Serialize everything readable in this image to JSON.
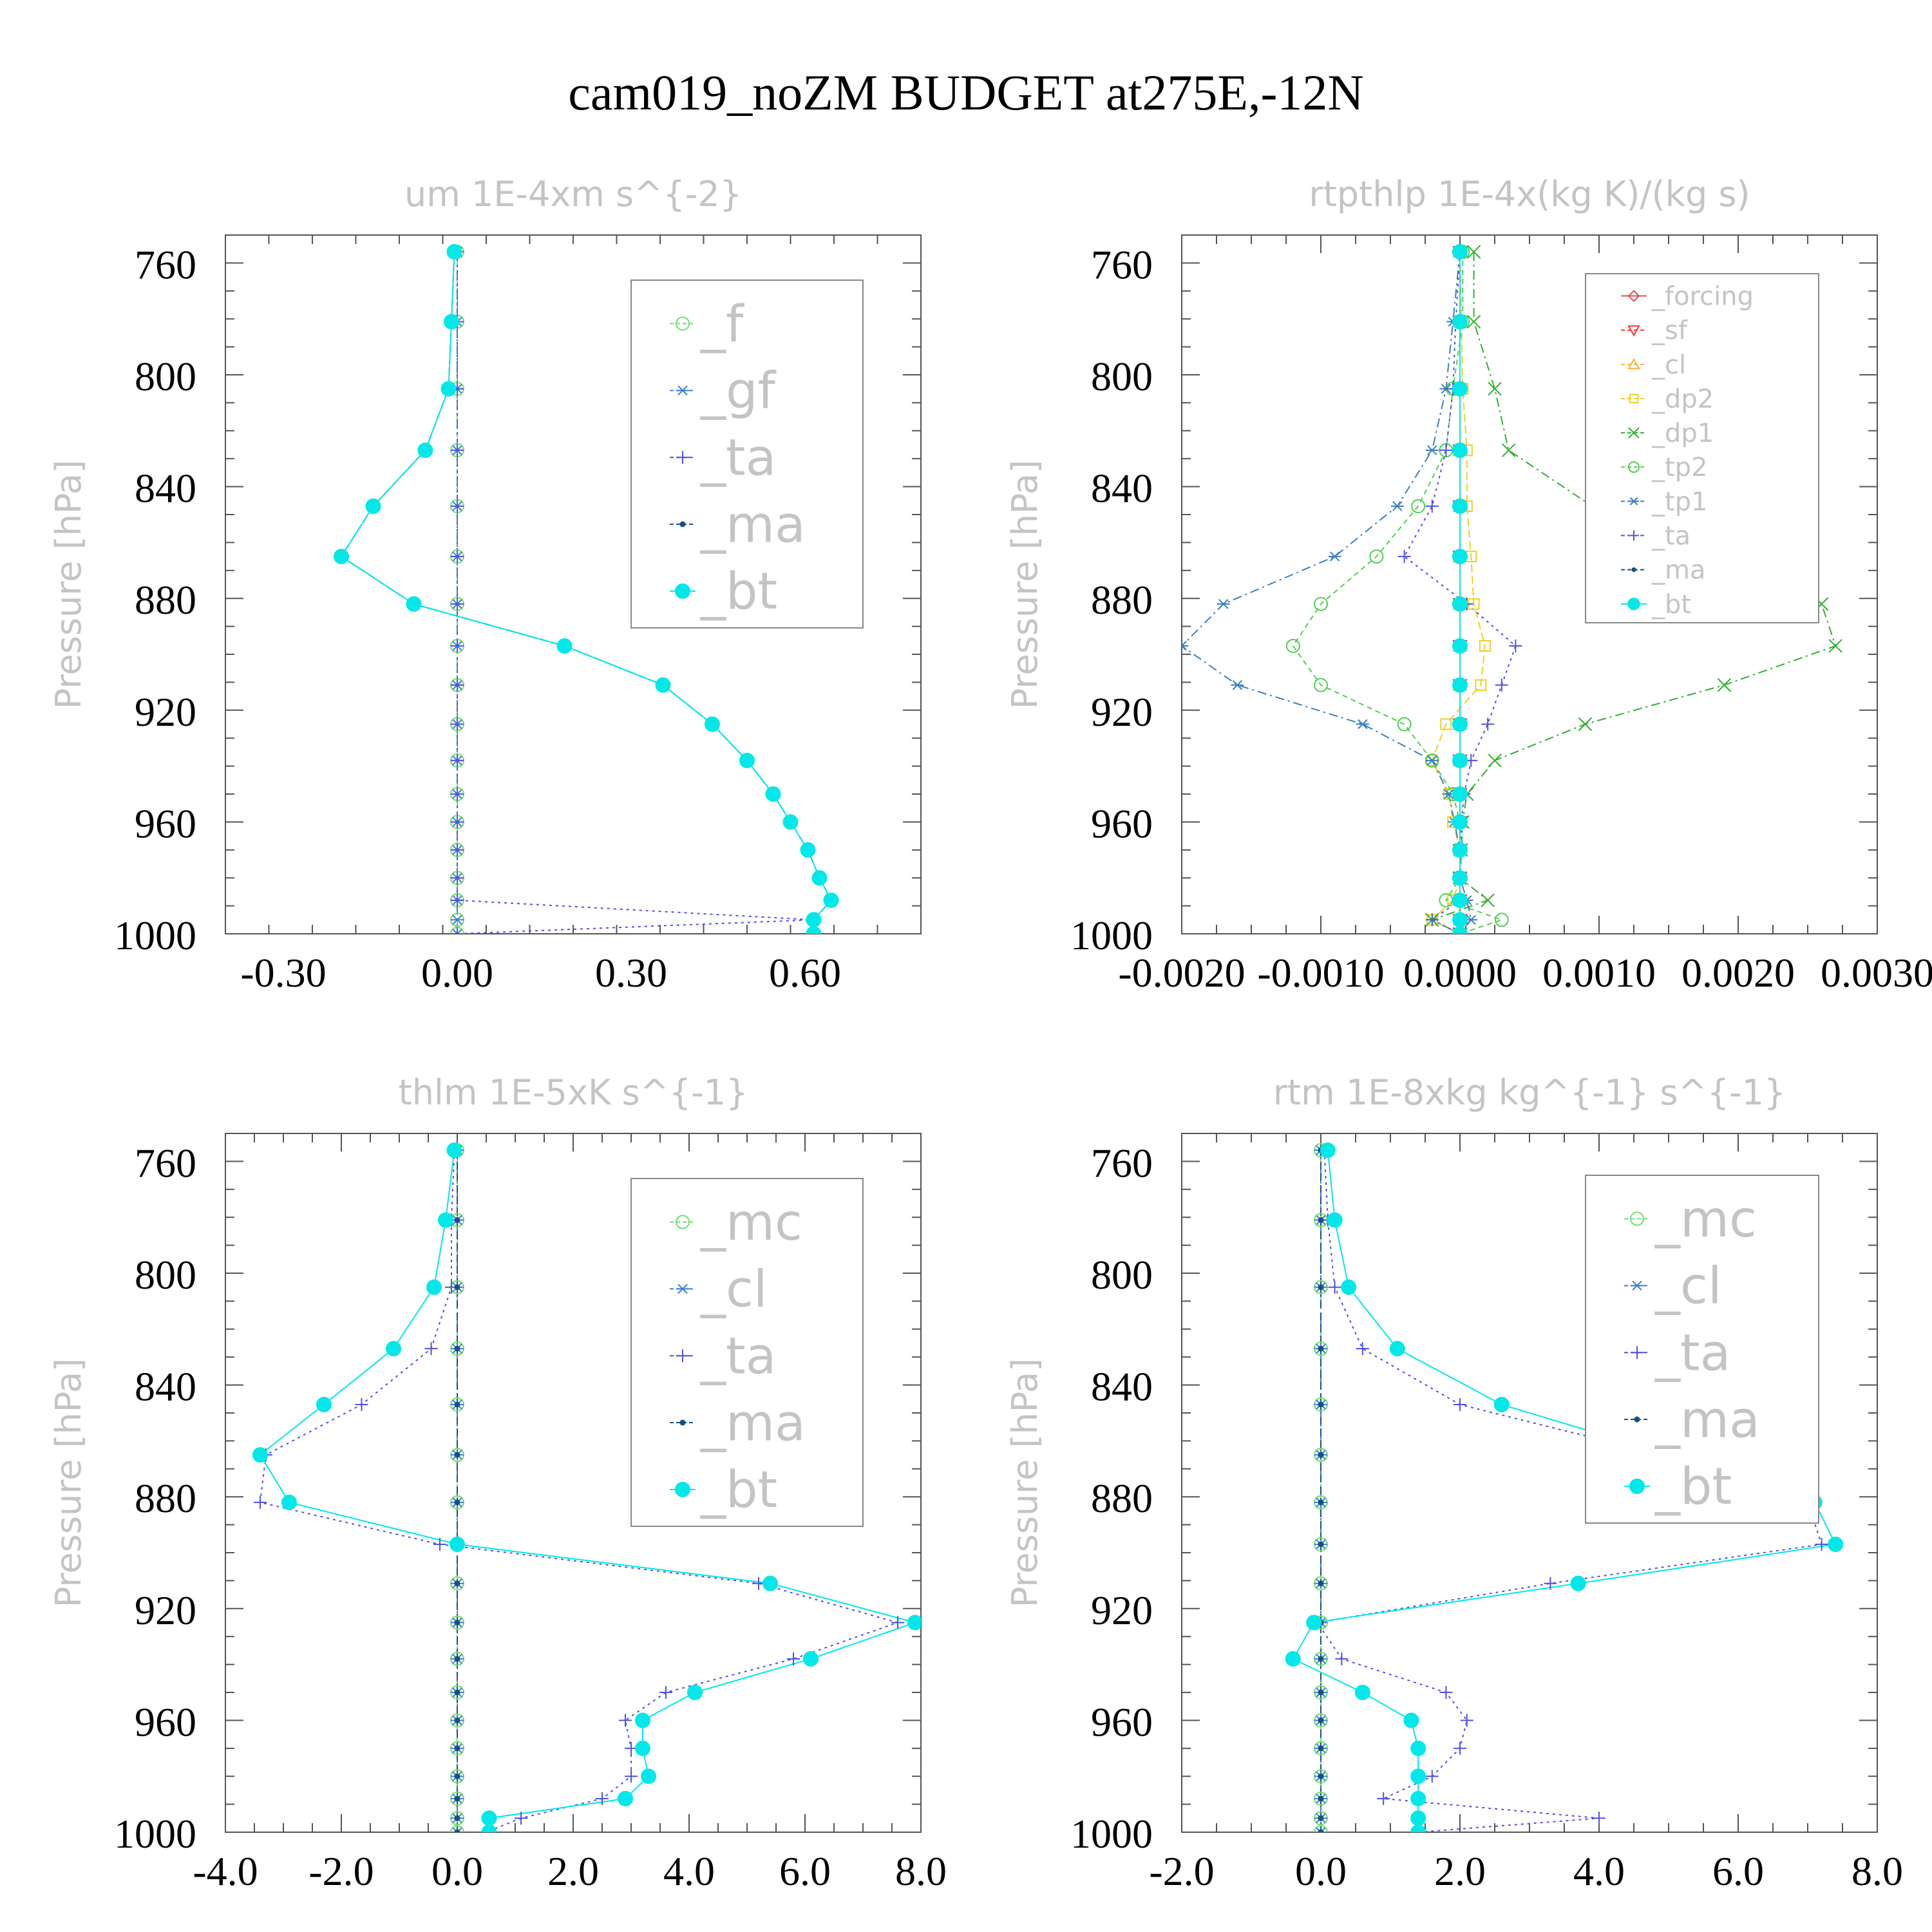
{
  "title": "cam019_noZM  BUDGET at275E,-12N",
  "charts": [
    {
      "type": "line",
      "title": "um   1E-4xm s^{-2}",
      "ylabel": "Pressure [hPa]",
      "xlim": [
        -0.4,
        0.8
      ],
      "xticks": [
        -0.3,
        0.0,
        0.3,
        0.6
      ],
      "xtick_labels": [
        "-0.30",
        "0.00",
        "0.30",
        "0.60"
      ],
      "ylim": [
        1000,
        750
      ],
      "yticks": [
        760,
        800,
        840,
        880,
        920,
        960,
        1000
      ],
      "ytick_labels": [
        "760",
        "800",
        "840",
        "880",
        "920",
        "960",
        "1000"
      ],
      "levels": [
        756,
        781,
        805,
        827,
        847,
        865,
        882,
        897,
        911,
        925,
        938,
        950,
        960,
        970,
        980,
        988,
        995,
        1000
      ],
      "series": [
        {
          "name": "_f",
          "color": "#6ee06e",
          "marker": "circle-open",
          "dash": "8,6",
          "values": [
            0,
            0,
            0,
            0,
            0,
            0,
            0,
            0,
            0,
            0,
            0,
            0,
            0,
            0,
            0,
            0,
            0,
            0
          ]
        },
        {
          "name": "_gf",
          "color": "#3a7fd0",
          "marker": "asterisk",
          "dash": "14,6,3,6",
          "values": [
            0,
            0,
            0,
            0,
            0,
            0,
            0,
            0,
            0,
            0,
            0,
            0,
            0,
            0,
            0,
            0,
            0,
            0
          ]
        },
        {
          "name": "_ta",
          "color": "#5050e6",
          "marker": "plus",
          "dash": "4,6",
          "values": [
            0,
            0,
            0,
            0,
            0,
            0,
            0,
            0,
            0,
            0,
            0,
            0,
            0,
            0,
            0,
            0,
            0.615,
            0.0
          ]
        },
        {
          "name": "_ma",
          "color": "#1a5080",
          "marker": "dot",
          "dash": "12,6",
          "values": [
            -0.005,
            -0.01,
            -0.015,
            -0.055,
            -0.145,
            -0.2,
            -0.075,
            0.185,
            0.355,
            0.44,
            0.5,
            0.545,
            0.575,
            0.605,
            0.625,
            0.645,
            0.615,
            0.615
          ]
        },
        {
          "name": "_bt",
          "color": "#00e8e8",
          "marker": "filled-circle",
          "dash": "",
          "values": [
            -0.005,
            -0.01,
            -0.015,
            -0.055,
            -0.145,
            -0.2,
            -0.075,
            0.185,
            0.355,
            0.44,
            0.5,
            0.545,
            0.575,
            0.605,
            0.625,
            0.645,
            0.615,
            0.615
          ]
        }
      ]
    },
    {
      "type": "line",
      "title": "rtpthlp   1E-4x(kg K)/(kg s)",
      "ylabel": "Pressure [hPa]",
      "xlim": [
        -0.002,
        0.003
      ],
      "xticks": [
        -0.002,
        -0.001,
        0.0,
        0.001,
        0.002,
        0.003
      ],
      "xtick_labels": [
        "-0.0020",
        "-0.0010",
        "0.0000",
        "0.0010",
        "0.0020",
        "0.0030"
      ],
      "ylim": [
        1000,
        750
      ],
      "yticks": [
        760,
        800,
        840,
        880,
        920,
        960,
        1000
      ],
      "ytick_labels": [
        "760",
        "800",
        "840",
        "880",
        "920",
        "960",
        "1000"
      ],
      "levels": [
        756,
        781,
        805,
        827,
        847,
        865,
        882,
        897,
        911,
        925,
        938,
        950,
        960,
        970,
        980,
        988,
        995,
        1000
      ],
      "series": [
        {
          "name": "_forcing",
          "color": "#e05050",
          "marker": "diamond",
          "dash": "",
          "values": [
            0,
            0,
            0,
            0,
            0,
            0,
            0,
            0,
            0,
            0,
            0,
            0,
            0,
            0,
            0,
            0,
            0,
            0
          ]
        },
        {
          "name": "_sf",
          "color": "#ff3030",
          "marker": "triangle-down",
          "dash": "8,6",
          "values": [
            0,
            0,
            0,
            0,
            0,
            0,
            0,
            0,
            0,
            0,
            0,
            0,
            0,
            0,
            0,
            0,
            0,
            0
          ]
        },
        {
          "name": "_cl",
          "color": "#ffb030",
          "marker": "triangle",
          "dash": "4,6",
          "values": [
            0,
            0,
            0,
            0,
            0,
            0,
            0,
            0,
            0,
            0,
            0,
            0,
            0,
            0,
            0,
            0,
            0,
            0
          ]
        },
        {
          "name": "_dp2",
          "color": "#f0d020",
          "marker": "square",
          "dash": "12,6",
          "values": [
            0,
            1e-05,
            2e-05,
            5e-05,
            5e-05,
            8e-05,
            0.0001,
            0.00018,
            0.00015,
            -0.0001,
            -0.0002,
            -8e-05,
            -5e-05,
            0,
            0,
            -5e-05,
            -0.0002,
            0
          ]
        },
        {
          "name": "_dp1",
          "color": "#30b030",
          "marker": "x",
          "dash": "14,6,3,6",
          "values": [
            0.0001,
            0.0001,
            0.00025,
            0.00035,
            0.00095,
            0.0015,
            0.0026,
            0.0027,
            0.0019,
            0.0009,
            0.00025,
            5e-05,
            2e-05,
            1e-05,
            0,
            0.0002,
            -0.0002,
            0
          ]
        },
        {
          "name": "_tp2",
          "color": "#50d050",
          "marker": "circle-open",
          "dash": "8,6",
          "values": [
            2e-05,
            2e-05,
            -5e-05,
            -0.0001,
            -0.0003,
            -0.0006,
            -0.001,
            -0.0012,
            -0.001,
            -0.0004,
            -0.0002,
            -5e-05,
            0,
            0,
            0,
            -0.0001,
            0.0003,
            0
          ]
        },
        {
          "name": "_tp1",
          "color": "#3a80c0",
          "marker": "asterisk",
          "dash": "14,6,3,6",
          "values": [
            0,
            -5e-05,
            -0.0001,
            -0.0002,
            -0.00045,
            -0.0009,
            -0.0017,
            -0.002,
            -0.0016,
            -0.0007,
            -0.0002,
            -8e-05,
            -4e-05,
            0,
            0,
            5e-05,
            8e-05,
            0
          ]
        },
        {
          "name": "_ta",
          "color": "#5050e6",
          "marker": "plus",
          "dash": "4,6",
          "values": [
            0,
            -3e-05,
            -5e-05,
            -0.0001,
            -0.0002,
            -0.0004,
            5e-05,
            0.0004,
            0.0003,
            0.0002,
            8e-05,
            3e-05,
            1e-05,
            0,
            0,
            0,
            -0.0002,
            0
          ]
        },
        {
          "name": "_ma",
          "color": "#1a5080",
          "marker": "dot",
          "dash": "12,6",
          "values": [
            0,
            0,
            0,
            0,
            0,
            0,
            0,
            0,
            0,
            0,
            0,
            0,
            0,
            0,
            0,
            0,
            0,
            0
          ]
        },
        {
          "name": "_bt",
          "color": "#00e8e8",
          "marker": "filled-circle",
          "dash": "",
          "values": [
            0,
            0,
            0,
            0,
            0,
            0,
            0,
            0,
            0,
            0,
            0,
            0,
            0,
            0,
            0,
            0,
            0,
            0
          ]
        }
      ]
    },
    {
      "type": "line",
      "title": "thlm   1E-5xK s^{-1}",
      "ylabel": "Pressure [hPa]",
      "xlim": [
        -4.0,
        8.0
      ],
      "xticks": [
        -4,
        -2,
        0,
        2,
        4,
        6,
        8
      ],
      "xtick_labels": [
        "-4.0",
        "-2.0",
        "0.0",
        "2.0",
        "4.0",
        "6.0",
        "8.0"
      ],
      "ylim": [
        1000,
        750
      ],
      "yticks": [
        760,
        800,
        840,
        880,
        920,
        960,
        1000
      ],
      "ytick_labels": [
        "760",
        "800",
        "840",
        "880",
        "920",
        "960",
        "1000"
      ],
      "levels": [
        756,
        781,
        805,
        827,
        847,
        865,
        882,
        897,
        911,
        925,
        938,
        950,
        960,
        970,
        980,
        988,
        995,
        1000
      ],
      "series": [
        {
          "name": "_mc",
          "color": "#6ee06e",
          "marker": "circle-open",
          "dash": "8,6",
          "values": [
            0,
            0,
            0,
            0,
            0,
            0,
            0,
            0,
            0,
            0,
            0,
            0,
            0,
            0,
            0,
            0,
            0,
            0
          ]
        },
        {
          "name": "_cl",
          "color": "#3a7fd0",
          "marker": "asterisk",
          "dash": "14,6,3,6",
          "values": [
            0,
            0,
            0,
            0,
            0,
            0,
            0,
            0,
            0,
            0,
            0,
            0,
            0,
            0,
            0,
            0,
            0,
            0
          ]
        },
        {
          "name": "_ta",
          "color": "#5050e6",
          "marker": "plus",
          "dash": "4,6",
          "values": [
            -0.05,
            -0.1,
            -0.1,
            -0.45,
            -1.65,
            -3.3,
            -3.4,
            -0.3,
            5.2,
            7.6,
            5.8,
            3.6,
            2.9,
            3.0,
            3.0,
            2.5,
            1.1,
            0.5
          ]
        },
        {
          "name": "_ma",
          "color": "#1a5080",
          "marker": "dot",
          "dash": "12,6",
          "values": [
            0,
            0,
            0,
            0,
            0,
            0,
            0,
            0,
            0,
            0,
            0,
            0,
            0,
            0,
            0,
            0,
            0,
            0
          ]
        },
        {
          "name": "_bt",
          "color": "#00e8e8",
          "marker": "filled-circle",
          "dash": "",
          "values": [
            -0.05,
            -0.2,
            -0.4,
            -1.1,
            -2.3,
            -3.4,
            -2.9,
            0.0,
            5.4,
            7.9,
            6.1,
            4.1,
            3.2,
            3.2,
            3.3,
            2.9,
            0.55,
            0.55
          ]
        }
      ]
    },
    {
      "type": "line",
      "title": "rtm   1E-8xkg kg^{-1} s^{-1}",
      "ylabel": "Pressure [hPa]",
      "xlim": [
        -2.0,
        8.0
      ],
      "xticks": [
        -2,
        0,
        2,
        4,
        6,
        8
      ],
      "xtick_labels": [
        "-2.0",
        "0.0",
        "2.0",
        "4.0",
        "6.0",
        "8.0"
      ],
      "ylim": [
        1000,
        750
      ],
      "yticks": [
        760,
        800,
        840,
        880,
        920,
        960,
        1000
      ],
      "ytick_labels": [
        "760",
        "800",
        "840",
        "880",
        "920",
        "960",
        "1000"
      ],
      "levels": [
        756,
        781,
        805,
        827,
        847,
        865,
        882,
        897,
        911,
        925,
        938,
        950,
        960,
        970,
        980,
        988,
        995,
        1000
      ],
      "series": [
        {
          "name": "_mc",
          "color": "#6ee06e",
          "marker": "circle-open",
          "dash": "8,6",
          "values": [
            0,
            0,
            0,
            0,
            0,
            0,
            0,
            0,
            0,
            0,
            0,
            0,
            0,
            0,
            0,
            0,
            0,
            0
          ]
        },
        {
          "name": "_cl",
          "color": "#3a7fd0",
          "marker": "asterisk",
          "dash": "14,6,3,6",
          "values": [
            0,
            0,
            0,
            0,
            0,
            0,
            0,
            0,
            0,
            0,
            0,
            0,
            0,
            0,
            0,
            0,
            0,
            0
          ]
        },
        {
          "name": "_ta",
          "color": "#5050e6",
          "marker": "plus",
          "dash": "4,6",
          "values": [
            0.05,
            0.1,
            0.2,
            0.6,
            2.0,
            4.9,
            7.0,
            7.2,
            3.3,
            -0.05,
            0.3,
            1.8,
            2.1,
            2.0,
            1.6,
            0.9,
            4.0,
            1.4
          ]
        },
        {
          "name": "_ma",
          "color": "#1a5080",
          "marker": "dot",
          "dash": "12,6",
          "values": [
            0,
            0,
            0,
            0,
            0,
            0,
            0,
            0,
            0,
            0,
            0,
            0,
            0,
            0,
            0,
            0,
            0,
            0
          ]
        },
        {
          "name": "_bt",
          "color": "#00e8e8",
          "marker": "filled-circle",
          "dash": "",
          "values": [
            0.1,
            0.2,
            0.4,
            1.1,
            2.6,
            5.0,
            7.1,
            7.4,
            3.7,
            -0.1,
            -0.4,
            0.6,
            1.3,
            1.4,
            1.4,
            1.4,
            1.4,
            1.4
          ]
        }
      ]
    }
  ],
  "chart_data": [
    {
      "type": "line",
      "title": "um   1E-4xm s^{-2}",
      "ylabel": "Pressure [hPa]",
      "xlim": [
        -0.4,
        0.8
      ],
      "ylim": [
        1000,
        750
      ]
    },
    {
      "type": "line",
      "title": "rtpthlp   1E-4x(kg K)/(kg s)",
      "ylabel": "Pressure [hPa]",
      "xlim": [
        -0.002,
        0.003
      ],
      "ylim": [
        1000,
        750
      ]
    },
    {
      "type": "line",
      "title": "thlm   1E-5xK s^{-1}",
      "ylabel": "Pressure [hPa]",
      "xlim": [
        -4.0,
        8.0
      ],
      "ylim": [
        1000,
        750
      ]
    },
    {
      "type": "line",
      "title": "rtm   1E-8xkg kg^{-1} s^{-1}",
      "ylabel": "Pressure [hPa]",
      "xlim": [
        -2.0,
        8.0
      ],
      "ylim": [
        1000,
        750
      ]
    }
  ]
}
